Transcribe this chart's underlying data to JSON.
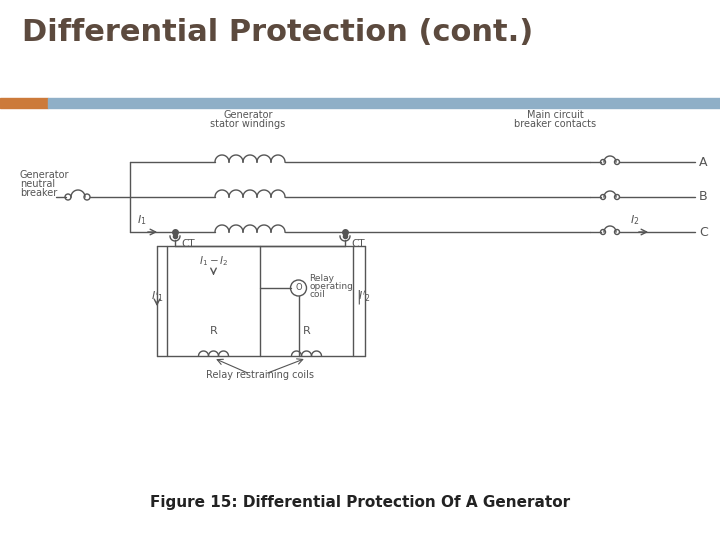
{
  "title": "Differential Protection (cont.)",
  "title_color": "#5c4a3e",
  "title_fontsize": 22,
  "title_fontweight": "bold",
  "bg_color": "#ffffff",
  "diagram_bg": "#f0f0f0",
  "accent_orange": "#cc7a3a",
  "accent_blue": "#8fafc7",
  "lc": "#555555",
  "tc": "#555555",
  "caption": "Figure 15: Differential Protection Of A Generator",
  "caption_fontsize": 11,
  "caption_fontweight": "bold",
  "caption_color": "#222222",
  "label_gen_stator": [
    "Generator",
    "stator windings"
  ],
  "label_main_cb": [
    "Main circuit",
    "breaker contacts"
  ],
  "label_gen_neutral": [
    "Generator",
    "neutral",
    "breaker"
  ],
  "label_CT": "CT",
  "label_A": "A",
  "label_B": "B",
  "label_C": "C",
  "label_relay_coils": "Relay restraining coils",
  "label_relay_op1": "Relay",
  "label_relay_op2": "operating",
  "label_relay_op3": "coil"
}
